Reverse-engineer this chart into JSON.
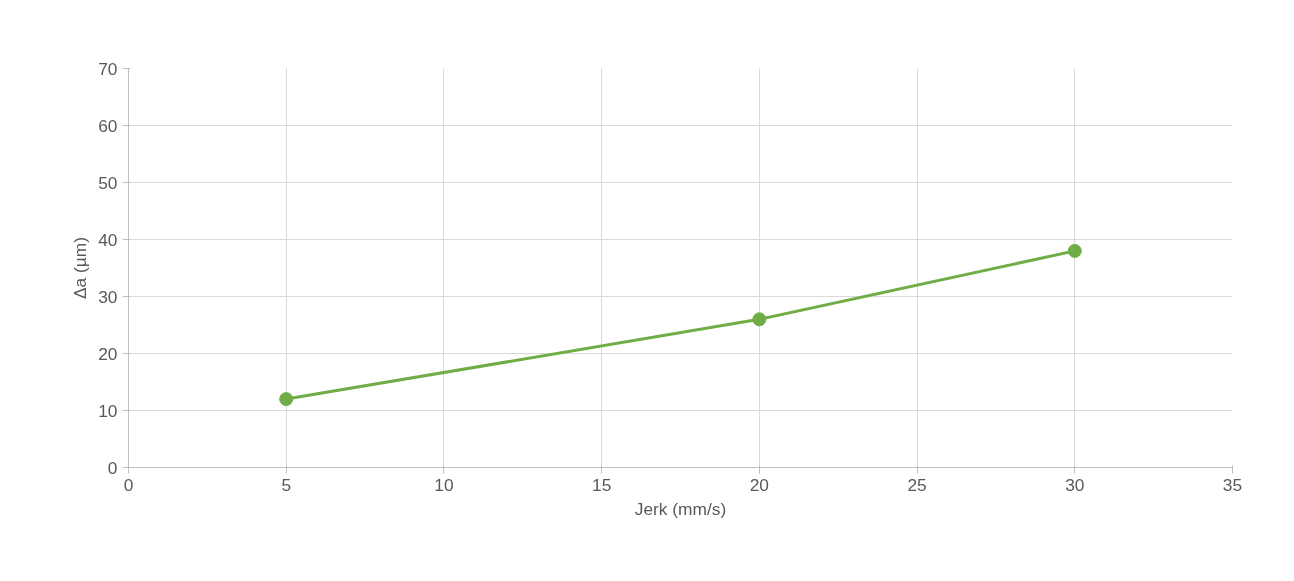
{
  "chart_data": {
    "type": "line",
    "xlabel": "Jerk (mm/s)",
    "ylabel": "Δa (µm)",
    "x": [
      5,
      20,
      30
    ],
    "series": [
      {
        "color": "#70ad47",
        "values": [
          12,
          26,
          38
        ]
      }
    ],
    "xlim": [
      0,
      35
    ],
    "ylim": [
      0,
      70
    ],
    "xticks": [
      0,
      5,
      10,
      15,
      20,
      25,
      30,
      35
    ],
    "yticks": [
      0,
      10,
      20,
      30,
      40,
      50,
      60,
      70
    ],
    "grid": true,
    "marker": "circle",
    "line_style": "solid"
  }
}
